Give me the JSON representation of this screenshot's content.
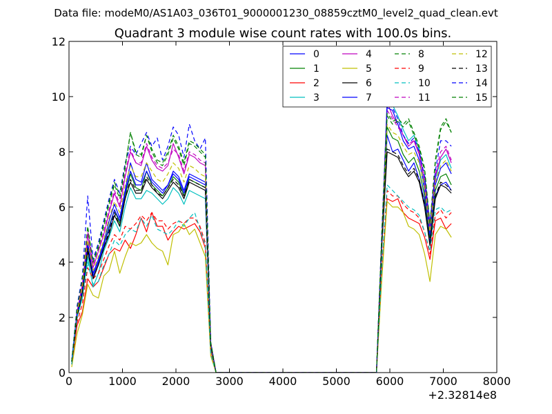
{
  "header": "Data file: modeM0/AS1A03_036T01_9000001230_08859cztM0_level2_quad_clean.evt",
  "chart_data": {
    "type": "line",
    "title": "Quadrant 3 module wise count rates with 100.0s bins.",
    "xlabel": "",
    "ylabel": "",
    "x_offset_label": "+2.32814e8",
    "xlim": [
      0,
      8000
    ],
    "ylim": [
      0,
      12
    ],
    "xticks": [
      0,
      1000,
      2000,
      3000,
      4000,
      5000,
      6000,
      7000,
      8000
    ],
    "yticks": [
      0,
      2,
      4,
      6,
      8,
      10,
      12
    ],
    "grid": false,
    "legend": "top-right",
    "x": [
      50,
      150,
      250,
      350,
      450,
      550,
      650,
      750,
      850,
      950,
      1050,
      1150,
      1250,
      1350,
      1450,
      1550,
      1650,
      1750,
      1850,
      1950,
      2050,
      2150,
      2250,
      2350,
      2450,
      2550,
      2650,
      2750,
      2850,
      2950,
      3050,
      3150,
      3250,
      3350,
      3450,
      3550,
      3650,
      3750,
      3850,
      3950,
      4050,
      4150,
      4250,
      4350,
      4450,
      4550,
      4650,
      4750,
      4850,
      4950,
      5050,
      5150,
      5250,
      5350,
      5450,
      5550,
      5650,
      5750,
      5850,
      5950,
      6050,
      6150,
      6250,
      6350,
      6450,
      6550,
      6650,
      6750,
      6850,
      6950,
      7050,
      7150
    ],
    "series": [
      {
        "name": "0",
        "color": "#0000ff",
        "style": "solid",
        "values": [
          0.4,
          2.2,
          3.1,
          4.7,
          3.6,
          4.1,
          4.7,
          5.5,
          6.1,
          5.6,
          6.6,
          7.6,
          7.0,
          6.9,
          7.6,
          7.0,
          6.8,
          6.6,
          6.8,
          7.3,
          7.1,
          6.6,
          7.2,
          7.1,
          7.0,
          6.9,
          1.0,
          0,
          0,
          0,
          0,
          0,
          0,
          0,
          0,
          0,
          0,
          0,
          0,
          0,
          0,
          0,
          0,
          0,
          0,
          0,
          0,
          0,
          0,
          0,
          0,
          0,
          0,
          0,
          0,
          0,
          0,
          0,
          4.8,
          8.6,
          8.0,
          8.1,
          7.7,
          7.3,
          7.6,
          7.0,
          6.2,
          4.7,
          6.4,
          6.8,
          6.9,
          6.6
        ]
      },
      {
        "name": "1",
        "color": "#008000",
        "style": "solid",
        "values": [
          0.4,
          2.1,
          3.0,
          4.6,
          3.5,
          4.0,
          4.6,
          5.3,
          5.9,
          5.4,
          6.4,
          7.2,
          6.7,
          6.6,
          7.3,
          6.8,
          6.6,
          6.4,
          6.7,
          7.1,
          6.9,
          6.4,
          7.0,
          6.9,
          6.8,
          6.7,
          1.0,
          0,
          0,
          0,
          0,
          0,
          0,
          0,
          0,
          0,
          0,
          0,
          0,
          0,
          0,
          0,
          0,
          0,
          0,
          0,
          0,
          0,
          0,
          0,
          0,
          0,
          0,
          0,
          0,
          0,
          0,
          0,
          4.7,
          8.9,
          8.5,
          8.4,
          7.9,
          7.6,
          7.8,
          7.3,
          6.4,
          4.9,
          6.6,
          7.1,
          7.2,
          6.8
        ]
      },
      {
        "name": "2",
        "color": "#ff0000",
        "style": "solid",
        "values": [
          0.3,
          1.7,
          2.2,
          3.4,
          3.1,
          3.3,
          3.8,
          4.3,
          4.5,
          4.4,
          4.8,
          4.5,
          5.0,
          5.6,
          5.1,
          5.8,
          5.3,
          5.3,
          4.8,
          5.1,
          5.3,
          5.2,
          5.3,
          5.4,
          5.1,
          4.5,
          0.8,
          0,
          0,
          0,
          0,
          0,
          0,
          0,
          0,
          0,
          0,
          0,
          0,
          0,
          0,
          0,
          0,
          0,
          0,
          0,
          0,
          0,
          0,
          0,
          0,
          0,
          0,
          0,
          0,
          0,
          0,
          0,
          3.6,
          6.3,
          6.2,
          6.3,
          5.8,
          5.6,
          5.5,
          5.4,
          4.9,
          4.1,
          5.5,
          5.6,
          5.2,
          5.4
        ]
      },
      {
        "name": "3",
        "color": "#00bfbf",
        "style": "solid",
        "values": [
          0.4,
          2.0,
          2.7,
          4.2,
          3.1,
          3.6,
          4.4,
          4.9,
          5.5,
          5.1,
          6.0,
          6.7,
          6.3,
          6.3,
          6.6,
          6.5,
          6.3,
          6.1,
          6.3,
          6.7,
          6.5,
          6.1,
          6.6,
          6.5,
          6.4,
          6.3,
          0.9,
          0,
          0,
          0,
          0,
          0,
          0,
          0,
          0,
          0,
          0,
          0,
          0,
          0,
          0,
          0,
          0,
          0,
          0,
          0,
          0,
          0,
          0,
          0,
          0,
          0,
          0,
          0,
          0,
          0,
          0,
          0,
          4.6,
          10.0,
          9.7,
          9.3,
          8.8,
          8.4,
          8.6,
          8.1,
          6.7,
          5.2,
          7.0,
          7.7,
          7.9,
          7.4
        ]
      },
      {
        "name": "4",
        "color": "#bf00bf",
        "style": "solid",
        "values": [
          0.4,
          2.2,
          3.2,
          5.0,
          3.8,
          4.4,
          5.0,
          5.8,
          6.5,
          6.0,
          7.1,
          8.0,
          7.6,
          7.5,
          8.2,
          7.7,
          7.4,
          7.3,
          7.5,
          8.3,
          7.8,
          7.2,
          7.9,
          7.8,
          7.6,
          7.5,
          1.1,
          0,
          0,
          0,
          0,
          0,
          0,
          0,
          0,
          0,
          0,
          0,
          0,
          0,
          0,
          0,
          0,
          0,
          0,
          0,
          0,
          0,
          0,
          0,
          0,
          0,
          0,
          0,
          0,
          0,
          0,
          0,
          5.0,
          9.8,
          9.3,
          9.0,
          8.6,
          8.2,
          8.4,
          7.9,
          6.9,
          5.2,
          7.1,
          7.8,
          8.1,
          7.6
        ]
      },
      {
        "name": "5",
        "color": "#bfbf00",
        "style": "solid",
        "values": [
          0.2,
          1.4,
          2.1,
          3.2,
          2.8,
          2.7,
          3.5,
          3.7,
          4.4,
          3.6,
          4.2,
          4.7,
          4.6,
          4.7,
          5.0,
          4.7,
          4.5,
          4.4,
          3.9,
          5.0,
          5.1,
          5.4,
          5.0,
          5.2,
          4.7,
          4.2,
          0.6,
          0,
          0,
          0,
          0,
          0,
          0,
          0,
          0,
          0,
          0,
          0,
          0,
          0,
          0,
          0,
          0,
          0,
          0,
          0,
          0,
          0,
          0,
          0,
          0,
          0,
          0,
          0,
          0,
          0,
          0,
          0,
          3.4,
          6.2,
          6.0,
          6.0,
          5.8,
          5.3,
          5.2,
          5.0,
          4.3,
          3.3,
          5.0,
          5.3,
          5.2,
          4.9
        ]
      },
      {
        "name": "6",
        "color": "#000000",
        "style": "solid",
        "values": [
          0.4,
          2.0,
          2.9,
          4.4,
          3.4,
          3.9,
          4.5,
          5.0,
          5.7,
          5.3,
          6.3,
          6.9,
          6.5,
          6.5,
          7.0,
          6.7,
          6.5,
          6.3,
          6.6,
          6.9,
          6.7,
          6.3,
          6.9,
          6.8,
          6.7,
          6.6,
          1.0,
          0,
          0,
          0,
          0,
          0,
          0,
          0,
          0,
          0,
          0,
          0,
          0,
          0,
          0,
          0,
          0,
          0,
          0,
          0,
          0,
          0,
          0,
          0,
          0,
          0,
          0,
          0,
          0,
          0,
          0,
          0,
          4.6,
          8.0,
          7.9,
          7.8,
          7.4,
          7.1,
          7.3,
          6.9,
          6.0,
          4.6,
          6.3,
          6.8,
          6.7,
          6.5
        ]
      },
      {
        "name": "7",
        "color": "#0000ff",
        "style": "solid",
        "values": [
          0.4,
          2.1,
          3.0,
          4.6,
          3.5,
          4.0,
          4.6,
          5.2,
          5.9,
          5.5,
          6.5,
          7.3,
          6.8,
          6.8,
          7.3,
          6.9,
          6.7,
          6.5,
          6.8,
          7.2,
          7.0,
          6.5,
          7.1,
          7.0,
          6.9,
          6.8,
          1.0,
          0,
          0,
          0,
          0,
          0,
          0,
          0,
          0,
          0,
          0,
          0,
          0,
          0,
          0,
          0,
          0,
          0,
          0,
          0,
          0,
          0,
          0,
          0,
          0,
          0,
          0,
          0,
          0,
          0,
          0,
          0,
          4.8,
          9.6,
          9.5,
          9.0,
          8.4,
          8.1,
          8.2,
          7.7,
          6.6,
          5.0,
          6.8,
          7.4,
          7.6,
          7.2
        ]
      },
      {
        "name": "8",
        "color": "#008000",
        "style": "dashed",
        "values": [
          0.4,
          2.3,
          3.4,
          5.2,
          4.0,
          4.5,
          5.3,
          6.1,
          6.8,
          6.3,
          7.4,
          8.7,
          7.9,
          7.8,
          8.6,
          8.0,
          7.6,
          7.5,
          7.9,
          8.5,
          8.1,
          7.5,
          8.3,
          8.2,
          8.0,
          7.8,
          1.1,
          0,
          0,
          0,
          0,
          0,
          0,
          0,
          0,
          0,
          0,
          0,
          0,
          0,
          0,
          0,
          0,
          0,
          0,
          0,
          0,
          0,
          0,
          0,
          0,
          0,
          0,
          0,
          0,
          0,
          0,
          0,
          5.0,
          9.3,
          9.0,
          9.1,
          8.9,
          9.1,
          8.6,
          8.1,
          7.3,
          5.3,
          7.6,
          8.8,
          9.1,
          8.7
        ]
      },
      {
        "name": "9",
        "color": "#ff0000",
        "style": "dashed",
        "values": [
          0.3,
          1.8,
          2.5,
          3.8,
          3.4,
          3.6,
          4.1,
          4.6,
          5.0,
          4.8,
          5.3,
          5.2,
          5.4,
          5.7,
          5.5,
          5.8,
          5.5,
          5.5,
          5.2,
          5.4,
          5.5,
          5.4,
          5.6,
          5.6,
          5.3,
          4.7,
          0.8,
          0,
          0,
          0,
          0,
          0,
          0,
          0,
          0,
          0,
          0,
          0,
          0,
          0,
          0,
          0,
          0,
          0,
          0,
          0,
          0,
          0,
          0,
          0,
          0,
          0,
          0,
          0,
          0,
          0,
          0,
          0,
          3.9,
          6.6,
          6.4,
          6.4,
          6.1,
          5.9,
          5.8,
          5.6,
          5.1,
          4.3,
          5.7,
          5.9,
          5.6,
          5.8
        ]
      },
      {
        "name": "10",
        "color": "#00bfbf",
        "style": "dashed",
        "values": [
          0.3,
          2.0,
          2.7,
          4.0,
          3.2,
          3.3,
          3.9,
          4.3,
          4.8,
          4.6,
          5.0,
          5.2,
          5.1,
          5.6,
          5.3,
          5.7,
          5.2,
          5.1,
          5.0,
          5.2,
          5.5,
          5.3,
          5.6,
          5.8,
          5.2,
          4.6,
          0.7,
          0,
          0,
          0,
          0,
          0,
          0,
          0,
          0,
          0,
          0,
          0,
          0,
          0,
          0,
          0,
          0,
          0,
          0,
          0,
          0,
          0,
          0,
          0,
          0,
          0,
          0,
          0,
          0,
          0,
          0,
          0,
          3.8,
          6.8,
          6.6,
          6.4,
          6.2,
          6.0,
          5.9,
          5.7,
          5.1,
          4.4,
          5.9,
          6.0,
          5.8,
          5.9
        ]
      },
      {
        "name": "11",
        "color": "#bf00bf",
        "style": "dashed",
        "values": [
          0.4,
          2.2,
          3.3,
          5.1,
          3.9,
          4.4,
          5.1,
          5.9,
          6.6,
          6.1,
          7.2,
          8.1,
          7.6,
          7.6,
          8.3,
          7.8,
          7.5,
          7.4,
          7.6,
          8.1,
          7.9,
          7.3,
          8.0,
          7.9,
          7.7,
          7.6,
          1.1,
          0,
          0,
          0,
          0,
          0,
          0,
          0,
          0,
          0,
          0,
          0,
          0,
          0,
          0,
          0,
          0,
          0,
          0,
          0,
          0,
          0,
          0,
          0,
          0,
          0,
          0,
          0,
          0,
          0,
          0,
          0,
          5.0,
          9.5,
          9.2,
          8.9,
          8.6,
          8.3,
          8.4,
          8.0,
          7.0,
          5.3,
          7.2,
          8.0,
          8.2,
          7.7
        ]
      },
      {
        "name": "12",
        "color": "#bfbf00",
        "style": "dashed",
        "values": [
          0.4,
          2.1,
          3.1,
          4.8,
          3.7,
          4.2,
          4.8,
          5.6,
          6.2,
          5.8,
          6.8,
          7.5,
          7.1,
          7.1,
          7.6,
          7.3,
          7.0,
          6.9,
          7.2,
          7.6,
          7.4,
          6.9,
          7.5,
          7.4,
          7.2,
          7.1,
          1.0,
          0,
          0,
          0,
          0,
          0,
          0,
          0,
          0,
          0,
          0,
          0,
          0,
          0,
          0,
          0,
          0,
          0,
          0,
          0,
          0,
          0,
          0,
          0,
          0,
          0,
          0,
          0,
          0,
          0,
          0,
          0,
          4.9,
          9.0,
          8.7,
          8.6,
          8.2,
          7.9,
          8.0,
          7.6,
          6.7,
          5.1,
          6.9,
          7.5,
          7.7,
          7.3
        ]
      },
      {
        "name": "13",
        "color": "#000000",
        "style": "dashed",
        "values": [
          0.4,
          2.0,
          2.9,
          4.5,
          3.4,
          3.9,
          4.5,
          5.1,
          5.8,
          5.3,
          6.3,
          7.0,
          6.6,
          6.6,
          7.1,
          6.8,
          6.5,
          6.4,
          6.7,
          7.0,
          6.8,
          6.4,
          7.0,
          6.9,
          6.8,
          6.7,
          1.0,
          0,
          0,
          0,
          0,
          0,
          0,
          0,
          0,
          0,
          0,
          0,
          0,
          0,
          0,
          0,
          0,
          0,
          0,
          0,
          0,
          0,
          0,
          0,
          0,
          0,
          0,
          0,
          0,
          0,
          0,
          0,
          4.7,
          8.1,
          8.0,
          7.9,
          7.5,
          7.2,
          7.4,
          7.0,
          6.1,
          4.7,
          6.4,
          6.9,
          6.8,
          6.6
        ]
      },
      {
        "name": "14",
        "color": "#0000ff",
        "style": "dashed",
        "values": [
          0.4,
          2.4,
          3.5,
          6.4,
          4.1,
          4.7,
          5.5,
          6.3,
          7.0,
          6.5,
          7.6,
          8.2,
          7.9,
          8.3,
          8.7,
          8.2,
          8.5,
          7.7,
          8.2,
          8.9,
          8.6,
          7.8,
          9.0,
          8.4,
          8.1,
          8.5,
          1.1,
          0,
          0,
          0,
          0,
          0,
          0,
          0,
          0,
          0,
          0,
          0,
          0,
          0,
          0,
          0,
          0,
          0,
          0,
          0,
          0,
          0,
          0,
          0,
          0,
          0,
          0,
          0,
          0,
          0,
          0,
          0,
          5.1,
          9.7,
          9.6,
          9.2,
          8.6,
          8.3,
          8.5,
          8.0,
          7.1,
          5.4,
          7.3,
          8.4,
          8.4,
          8.2
        ]
      },
      {
        "name": "15",
        "color": "#008000",
        "style": "dashed",
        "values": [
          0.4,
          2.3,
          3.4,
          5.3,
          4.0,
          4.6,
          5.4,
          6.2,
          6.9,
          6.4,
          7.5,
          8.7,
          8.0,
          7.9,
          8.6,
          8.1,
          7.7,
          7.6,
          8.0,
          8.6,
          8.2,
          7.6,
          8.4,
          8.3,
          8.1,
          7.9,
          1.1,
          0,
          0,
          0,
          0,
          0,
          0,
          0,
          0,
          0,
          0,
          0,
          0,
          0,
          0,
          0,
          0,
          0,
          0,
          0,
          0,
          0,
          0,
          0,
          0,
          0,
          0,
          0,
          0,
          0,
          0,
          0,
          5.1,
          9.4,
          9.1,
          9.2,
          9.0,
          9.2,
          8.7,
          8.2,
          7.4,
          5.4,
          7.7,
          8.9,
          9.2,
          8.7
        ]
      }
    ]
  }
}
